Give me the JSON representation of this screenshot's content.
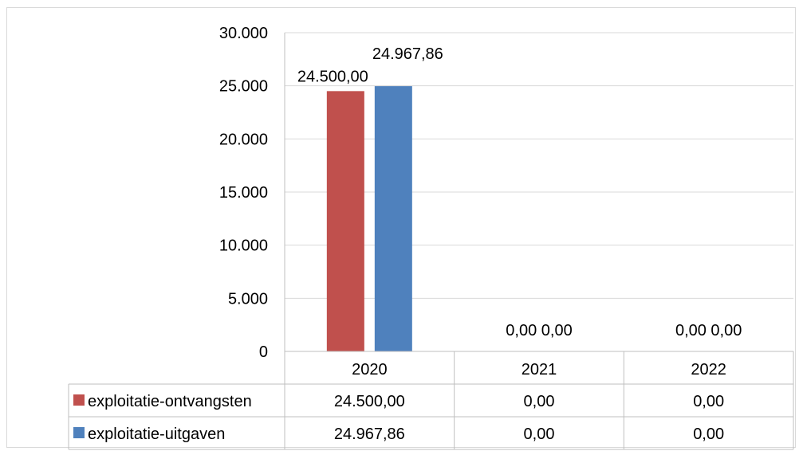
{
  "chart_data": {
    "type": "bar",
    "categories": [
      "2020",
      "2021",
      "2022"
    ],
    "series": [
      {
        "name": "exploitatie-ontvangsten",
        "color": "#c0504d",
        "values": [
          24500.0,
          0.0,
          0.0
        ],
        "labels": [
          "24.500,00",
          "0,00",
          "0,00"
        ]
      },
      {
        "name": "exploitatie-uitgaven",
        "color": "#4f81bd",
        "values": [
          24967.86,
          0.0,
          0.0
        ],
        "labels": [
          "24.967,86",
          "0,00",
          "0,00"
        ]
      }
    ],
    "y_ticks": [
      "0",
      "5.000",
      "10.000",
      "15.000",
      "20.000",
      "25.000",
      "30.000"
    ],
    "ylim": [
      0,
      30000
    ],
    "grid": true,
    "legend": "data-table"
  }
}
